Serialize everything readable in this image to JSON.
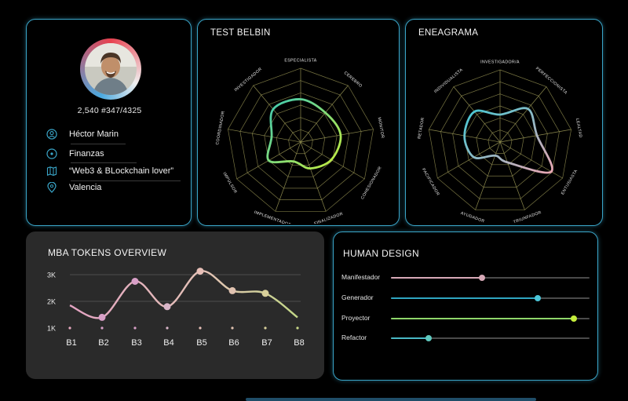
{
  "profile": {
    "stats": "2,540 #347/4325",
    "name": "Héctor Marin",
    "department": "Finanzas",
    "bio": "“Web3 & BLockchain lover”",
    "city": "Valencia"
  },
  "belbin": {
    "title": "TEST  BELBIN",
    "axes": [
      "ESPECIALISTA",
      "CEREBRO",
      "MONITOR",
      "COHESIONADOR",
      "FINALIZADOR",
      "IMPLEMENTADOR",
      "IMPULSOR",
      "COORDINADOR",
      "INVESTIGADOR"
    ],
    "values": [
      0.58,
      0.52,
      0.55,
      0.48,
      0.38,
      0.28,
      0.5,
      0.4,
      0.58
    ],
    "color_start": "#3ec9b3",
    "color_end": "#c8ee3c"
  },
  "eneagrama": {
    "title": "ENEAGRAMA",
    "axes": [
      "INVESTIGADOR/A",
      "PERFECCIONISTA",
      "LEALTAD",
      "ENTUSIASTA",
      "TRIUNFADOR",
      "AYUDADOR",
      "PACIFICADOR",
      "RETADOR",
      "INDIVIDUALISTA"
    ],
    "values": [
      0.38,
      0.6,
      0.52,
      0.82,
      0.3,
      0.2,
      0.42,
      0.5,
      0.55
    ],
    "color_start": "#41c9d4",
    "color_end": "#e9a6b3"
  },
  "tokens": {
    "title": "MBA TOKENS OVERVIEW",
    "chart_data": {
      "type": "line",
      "categories": [
        "B1",
        "B2",
        "B3",
        "B4",
        "B5",
        "B6",
        "B7",
        "B8"
      ],
      "values": [
        1850,
        1400,
        2750,
        1800,
        3130,
        2400,
        2300,
        1400
      ],
      "yticks": [
        "3K",
        "2K",
        "1K"
      ],
      "ytick_values": [
        3000,
        2000,
        1000
      ],
      "ylim": [
        1000,
        3000
      ],
      "point_colors": [
        "#e8a9c0",
        "#d9a0c8",
        "#d9a0c8",
        "#d9b6c9",
        "#e8c0b8",
        "#e0c2b0",
        "#d8d09a",
        "#c8d888"
      ]
    }
  },
  "human": {
    "title": "HUMAN DESIGN",
    "items": [
      {
        "label": "Manifestador",
        "value": 0.46,
        "color": "#d7a9b7",
        "track": "#d7a9b7"
      },
      {
        "label": "Generador",
        "value": 0.74,
        "color": "#4cc6d8",
        "track": "#2fa6c2"
      },
      {
        "label": "Proyector",
        "value": 0.92,
        "color": "#c5ee3c",
        "track": "#8ed66a"
      },
      {
        "label": "Refactor",
        "value": 0.19,
        "color": "#60c9be",
        "track": "#49b8c5"
      }
    ]
  }
}
